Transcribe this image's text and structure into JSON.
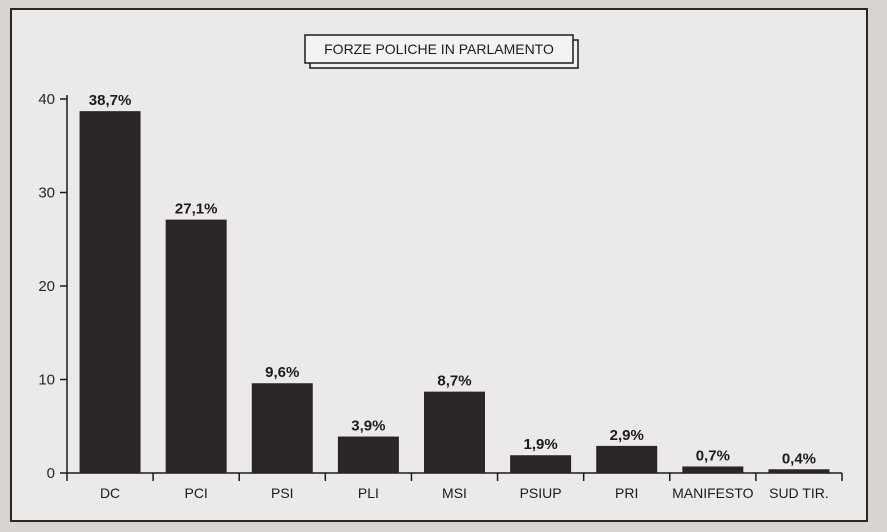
{
  "chart_data": {
    "type": "bar",
    "title": "FORZE POLICHE IN PARLAMENTO",
    "xlabel": "",
    "ylabel": "",
    "ylim": [
      0,
      40
    ],
    "yticks": [
      "0",
      "10",
      "20",
      "30",
      "40"
    ],
    "categories": [
      "DC",
      "PCI",
      "PSI",
      "PLI",
      "MSI",
      "PSIUP",
      "PRI",
      "MANIFESTO",
      "SUD TIR."
    ],
    "values": [
      38.7,
      27.1,
      9.6,
      3.9,
      8.7,
      1.9,
      2.9,
      0.7,
      0.4
    ],
    "data_labels": [
      "38,7%",
      "27,1%",
      "9,6%",
      "3,9%",
      "8,7%",
      "1,9%",
      "2,9%",
      "0,7%",
      "0,4%"
    ],
    "grid": false,
    "bar_color": "#2b2525"
  }
}
